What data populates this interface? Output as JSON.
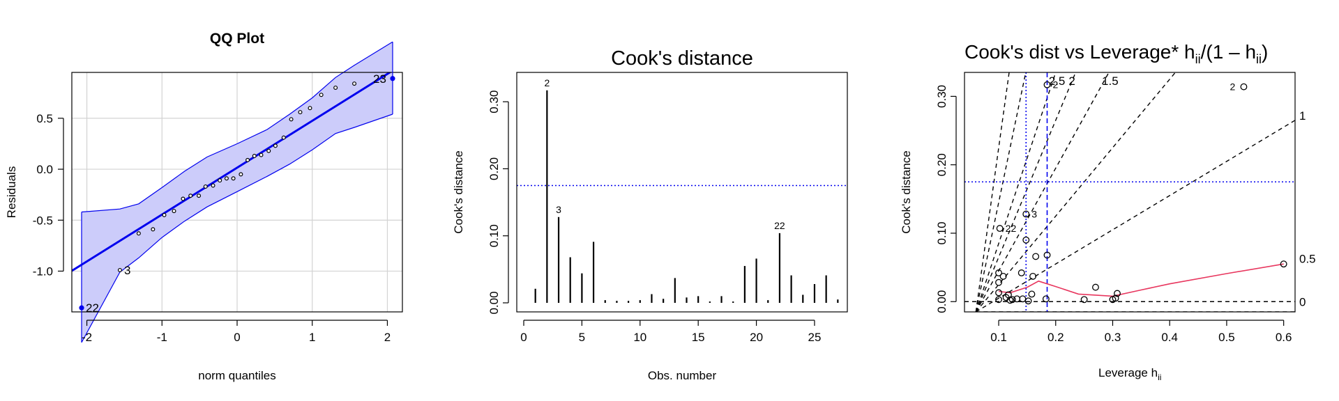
{
  "chart_data": [
    {
      "type": "scatter",
      "title": "QQ Plot",
      "xlabel": "norm quantiles",
      "ylabel": "Residuals",
      "xlim": [
        -2.2,
        2.2
      ],
      "ylim": [
        -1.4,
        0.95
      ],
      "xticks": [
        -2,
        -1,
        0,
        1,
        2
      ],
      "yticks": [
        -1.0,
        -0.5,
        0.0,
        0.5
      ],
      "grid": true,
      "points": [
        {
          "x": -2.07,
          "y": -1.36,
          "label": "22"
        },
        {
          "x": -1.56,
          "y": -0.99,
          "label": "3"
        },
        {
          "x": -1.31,
          "y": -0.63
        },
        {
          "x": -1.12,
          "y": -0.59
        },
        {
          "x": -0.97,
          "y": -0.45
        },
        {
          "x": -0.84,
          "y": -0.41
        },
        {
          "x": -0.72,
          "y": -0.29
        },
        {
          "x": -0.62,
          "y": -0.26
        },
        {
          "x": -0.51,
          "y": -0.26
        },
        {
          "x": -0.42,
          "y": -0.17
        },
        {
          "x": -0.32,
          "y": -0.16
        },
        {
          "x": -0.23,
          "y": -0.11
        },
        {
          "x": -0.14,
          "y": -0.09
        },
        {
          "x": -0.05,
          "y": -0.09
        },
        {
          "x": 0.05,
          "y": -0.05
        },
        {
          "x": 0.14,
          "y": 0.09
        },
        {
          "x": 0.23,
          "y": 0.13
        },
        {
          "x": 0.32,
          "y": 0.14
        },
        {
          "x": 0.42,
          "y": 0.18
        },
        {
          "x": 0.51,
          "y": 0.23
        },
        {
          "x": 0.62,
          "y": 0.31
        },
        {
          "x": 0.72,
          "y": 0.49
        },
        {
          "x": 0.84,
          "y": 0.56
        },
        {
          "x": 0.97,
          "y": 0.6
        },
        {
          "x": 1.12,
          "y": 0.73
        },
        {
          "x": 1.31,
          "y": 0.8
        },
        {
          "x": 1.56,
          "y": 0.84
        },
        {
          "x": 2.07,
          "y": 0.89,
          "label": "23"
        }
      ],
      "reference_line": {
        "intercept": 0.015,
        "slope": 0.46
      },
      "confidence_band": {
        "x": [
          -2.07,
          -1.56,
          -1.31,
          -1.0,
          -0.7,
          -0.4,
          0.0,
          0.4,
          0.7,
          1.0,
          1.31,
          1.56,
          2.07
        ],
        "upper": [
          -0.42,
          -0.39,
          -0.34,
          -0.18,
          -0.02,
          0.12,
          0.25,
          0.39,
          0.54,
          0.7,
          0.9,
          1.02,
          1.25
        ],
        "lower": [
          -1.7,
          -1.01,
          -0.87,
          -0.67,
          -0.51,
          -0.37,
          -0.22,
          -0.07,
          0.05,
          0.19,
          0.35,
          0.41,
          0.54
        ]
      },
      "colors": {
        "line": "#0000ee",
        "band_fill": "#ccccfa",
        "grid": "#d3d3d3"
      }
    },
    {
      "type": "bar",
      "title": "Cook's distance",
      "xlabel": "Obs. number",
      "ylabel": "Cook's distance",
      "xlim": [
        0,
        28
      ],
      "ylim": [
        0,
        0.35
      ],
      "xticks": [
        0,
        5,
        10,
        15,
        20,
        25
      ],
      "yticks": [
        "0.00",
        "0.10",
        "0.20",
        "0.30"
      ],
      "reference_line": {
        "y": 0.175,
        "style": "dotted",
        "color": "#0000ee"
      },
      "x": [
        1,
        2,
        3,
        4,
        5,
        6,
        7,
        8,
        9,
        10,
        11,
        12,
        13,
        14,
        15,
        16,
        17,
        18,
        19,
        20,
        21,
        22,
        23,
        24,
        25,
        26,
        27
      ],
      "values": [
        0.021,
        0.317,
        0.128,
        0.068,
        0.044,
        0.091,
        0.004,
        0.003,
        0.003,
        0.004,
        0.013,
        0.006,
        0.037,
        0.008,
        0.01,
        0.002,
        0.01,
        0.002,
        0.055,
        0.066,
        0.004,
        0.104,
        0.041,
        0.012,
        0.028,
        0.041,
        0.005
      ],
      "point_labels": [
        {
          "x": 2,
          "label": "2"
        },
        {
          "x": 3,
          "label": "3"
        },
        {
          "x": 22,
          "label": "22"
        }
      ]
    },
    {
      "type": "scatter",
      "title": "Cook's dist vs Leverage* hii/(1 – hii)",
      "title_parts": {
        "main": "Cook's dist vs Leverage* h",
        "sub1": "ii",
        "mid": "/(1 – h",
        "sub2": "ii",
        "end": ")"
      },
      "xlabel": "Leverage  hii",
      "xlabel_parts": {
        "main": "Leverage  h",
        "sub": "ii"
      },
      "ylabel": "Cook's distance",
      "xlim": [
        0.04,
        0.62
      ],
      "ylim": [
        -0.015,
        0.335
      ],
      "xticks": [
        "0.1",
        "0.2",
        "0.3",
        "0.4",
        "0.5",
        "0.6"
      ],
      "yticks": [
        "0.00",
        "0.10",
        "0.20",
        "0.30"
      ],
      "points": [
        {
          "x": 0.1,
          "y": 0.003
        },
        {
          "x": 0.1,
          "y": 0.013
        },
        {
          "x": 0.1,
          "y": 0.028
        },
        {
          "x": 0.1,
          "y": 0.042
        },
        {
          "x": 0.102,
          "y": 0.107,
          "label": "22"
        },
        {
          "x": 0.108,
          "y": 0.037
        },
        {
          "x": 0.113,
          "y": 0.006
        },
        {
          "x": 0.117,
          "y": 0.01
        },
        {
          "x": 0.12,
          "y": 0.002
        },
        {
          "x": 0.124,
          "y": 0.003
        },
        {
          "x": 0.132,
          "y": 0.004
        },
        {
          "x": 0.14,
          "y": 0.042
        },
        {
          "x": 0.142,
          "y": 0.004
        },
        {
          "x": 0.148,
          "y": 0.128,
          "label": "3"
        },
        {
          "x": 0.148,
          "y": 0.09
        },
        {
          "x": 0.152,
          "y": 0.001
        },
        {
          "x": 0.158,
          "y": 0.011
        },
        {
          "x": 0.16,
          "y": 0.037
        },
        {
          "x": 0.165,
          "y": 0.066
        },
        {
          "x": 0.185,
          "y": 0.068
        },
        {
          "x": 0.183,
          "y": 0.004
        },
        {
          "x": 0.25,
          "y": 0.003
        },
        {
          "x": 0.27,
          "y": 0.021
        },
        {
          "x": 0.3,
          "y": 0.003
        },
        {
          "x": 0.305,
          "y": 0.005
        },
        {
          "x": 0.308,
          "y": 0.012
        },
        {
          "x": 0.6,
          "y": 0.055
        },
        {
          "x": 0.185,
          "y": 0.317,
          "label": "2"
        },
        {
          "x": 0.53,
          "y": 0.314,
          "label": "2"
        }
      ],
      "smooth_line": {
        "x": [
          0.1,
          0.12,
          0.15,
          0.17,
          0.2,
          0.24,
          0.3,
          0.35,
          0.4,
          0.5,
          0.6
        ],
        "y": [
          0.015,
          0.013,
          0.021,
          0.03,
          0.022,
          0.011,
          0.008,
          0.017,
          0.026,
          0.041,
          0.055
        ],
        "color": "#e8365e"
      },
      "vertical_lines": [
        {
          "x": 0.148,
          "style": "dotted",
          "color": "#0000ee"
        },
        {
          "x": 0.185,
          "style": "dashed",
          "color": "#0000ee"
        }
      ],
      "horizontal_lines": [
        {
          "y": 0.175,
          "style": "dotted",
          "color": "#0000ee"
        },
        {
          "y": 0.0,
          "style": "dashed",
          "color": "#000000"
        }
      ],
      "contour_lines": [
        {
          "label": "2.5",
          "slope": 2.5
        },
        {
          "label": "2",
          "slope": 2.0
        },
        {
          "label": "1.5",
          "slope": 1.5
        },
        {
          "label": "1",
          "slope": 1.0
        },
        {
          "label": "0.5",
          "slope": 0.5
        },
        {
          "label": "0",
          "slope": 0.0
        }
      ],
      "contour_origin": {
        "x": 0.06,
        "y": -0.015
      }
    }
  ]
}
